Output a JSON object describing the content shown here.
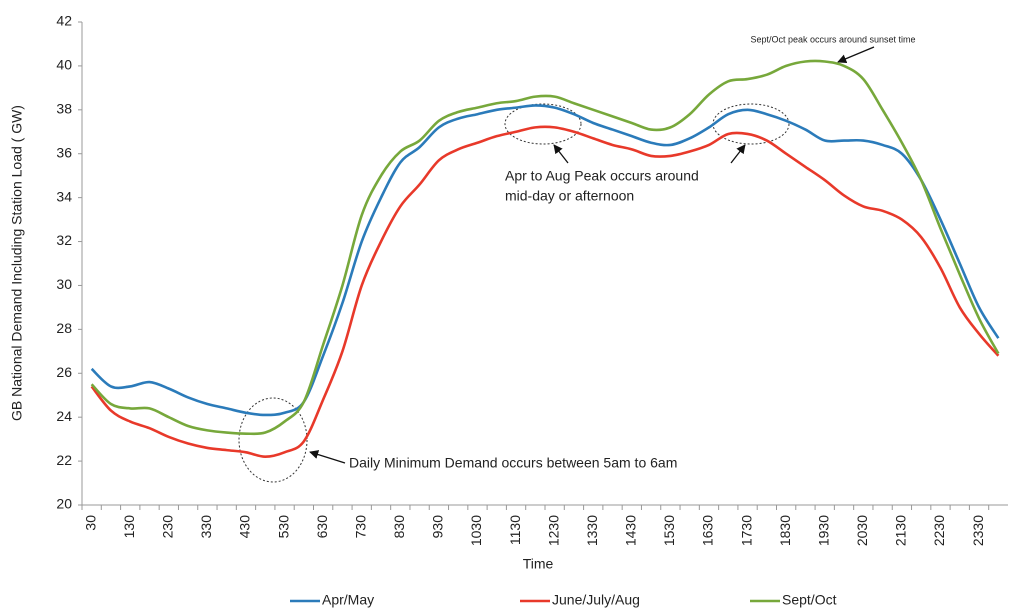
{
  "chart_data": {
    "type": "line",
    "x_label": "Time",
    "y_label": "GB National Demand Including Station Load ( GW)",
    "categories": [
      "30",
      null,
      "130",
      null,
      "230",
      null,
      "330",
      null,
      "430",
      null,
      "530",
      null,
      "630",
      null,
      "730",
      null,
      "830",
      null,
      "930",
      null,
      "1030",
      null,
      "1130",
      null,
      "1230",
      null,
      "1330",
      null,
      "1430",
      null,
      "1530",
      null,
      "1630",
      null,
      "1730",
      null,
      "1830",
      null,
      "1930",
      null,
      "2030",
      null,
      "2130",
      null,
      "2230",
      null,
      "2330",
      null
    ],
    "ylim": [
      20,
      42
    ],
    "yticks": [
      20,
      22,
      24,
      26,
      28,
      30,
      32,
      34,
      36,
      38,
      40,
      42
    ],
    "grid": false,
    "legend": "bottom",
    "series": [
      {
        "name": "Apr/May",
        "color": "#2b7bba",
        "values": [
          26.2,
          25.4,
          25.4,
          25.6,
          25.3,
          24.9,
          24.6,
          24.4,
          24.2,
          24.1,
          24.2,
          24.7,
          26.8,
          29.2,
          32.0,
          34.0,
          35.6,
          36.3,
          37.2,
          37.6,
          37.8,
          38.0,
          38.1,
          38.2,
          38.1,
          37.8,
          37.4,
          37.1,
          36.8,
          36.5,
          36.4,
          36.7,
          37.2,
          37.8,
          38.0,
          37.8,
          37.5,
          37.1,
          36.6,
          36.6,
          36.6,
          36.4,
          36.0,
          34.8,
          33.0,
          31.0,
          29.0,
          27.6
        ]
      },
      {
        "name": "June/July/Aug",
        "color": "#e8392a",
        "values": [
          25.4,
          24.3,
          23.8,
          23.5,
          23.1,
          22.8,
          22.6,
          22.5,
          22.4,
          22.2,
          22.4,
          22.9,
          24.8,
          27.0,
          30.0,
          32.0,
          33.6,
          34.6,
          35.7,
          36.2,
          36.5,
          36.8,
          37.0,
          37.2,
          37.2,
          37.0,
          36.7,
          36.4,
          36.2,
          35.9,
          35.9,
          36.1,
          36.4,
          36.9,
          36.9,
          36.6,
          36.0,
          35.4,
          34.8,
          34.1,
          33.6,
          33.4,
          33.0,
          32.2,
          30.8,
          29.0,
          27.8,
          26.8
        ]
      },
      {
        "name": "Sept/Oct",
        "color": "#77a83b",
        "values": [
          25.5,
          24.6,
          24.4,
          24.4,
          24.0,
          23.6,
          23.4,
          23.3,
          23.25,
          23.3,
          23.8,
          24.7,
          27.3,
          30.0,
          33.2,
          35.0,
          36.1,
          36.6,
          37.5,
          37.9,
          38.1,
          38.3,
          38.4,
          38.6,
          38.6,
          38.3,
          38.0,
          37.7,
          37.4,
          37.1,
          37.2,
          37.8,
          38.7,
          39.3,
          39.4,
          39.6,
          40.0,
          40.2,
          40.2,
          40.0,
          39.4,
          38.0,
          36.5,
          34.8,
          32.6,
          30.5,
          28.5,
          26.9
        ]
      }
    ],
    "annotations": [
      {
        "lines": [
          "Sept/Oct peak occurs around sunset time"
        ]
      },
      {
        "lines": [
          "Apr to Aug Peak occurs around",
          "mid-day or afternoon"
        ]
      },
      {
        "lines": [
          "Daily Minimum Demand occurs between 5am to 6am"
        ]
      }
    ]
  }
}
